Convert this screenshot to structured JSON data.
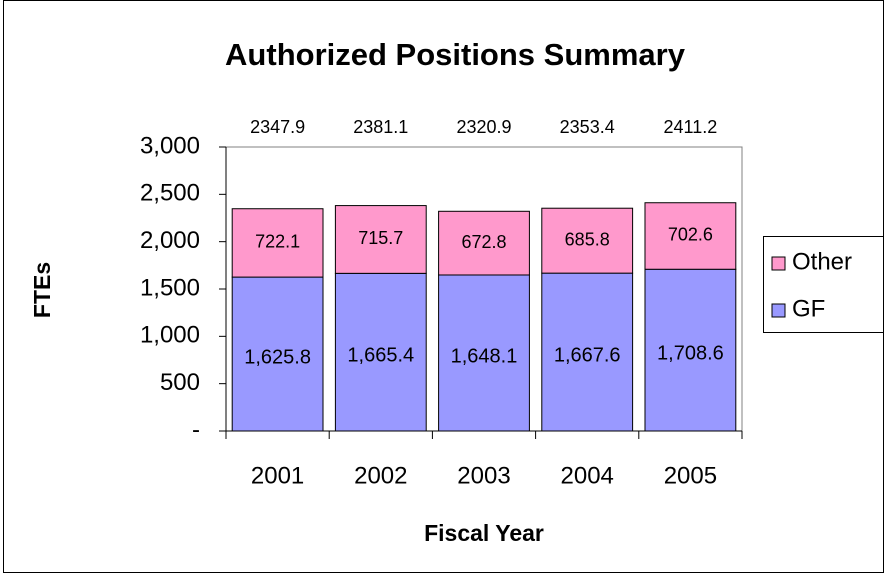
{
  "chart_data": {
    "type": "stacked_bar",
    "title": "Authorized Positions Summary",
    "x_label": "Fiscal Year",
    "y_label": "FTEs",
    "categories": [
      "2001",
      "2002",
      "2003",
      "2004",
      "2005"
    ],
    "series": [
      {
        "name": "GF",
        "color": "#9999ff",
        "values": [
          1625.8,
          1665.4,
          1648.1,
          1667.6,
          1708.6
        ],
        "value_labels": [
          "1,625.8",
          "1,665.4",
          "1,648.1",
          "1,667.6",
          "1,708.6"
        ]
      },
      {
        "name": "Other",
        "color": "#ff99cc",
        "values": [
          722.1,
          715.7,
          672.8,
          685.8,
          702.6
        ]
      }
    ],
    "totals": [
      2347.9,
      2381.1,
      2320.9,
      2353.4,
      2411.2
    ],
    "ylim": [
      0,
      3000
    ],
    "yticks": [
      {
        "value": 0,
        "label": "-"
      },
      500,
      {
        "value": 1000,
        "label": "1,000"
      },
      {
        "value": 1500,
        "label": "1,500"
      },
      {
        "value": 2000,
        "label": "2,000"
      },
      {
        "value": 2500,
        "label": "2,500"
      },
      {
        "value": 3000,
        "label": "3,000"
      }
    ],
    "legend": "right"
  }
}
